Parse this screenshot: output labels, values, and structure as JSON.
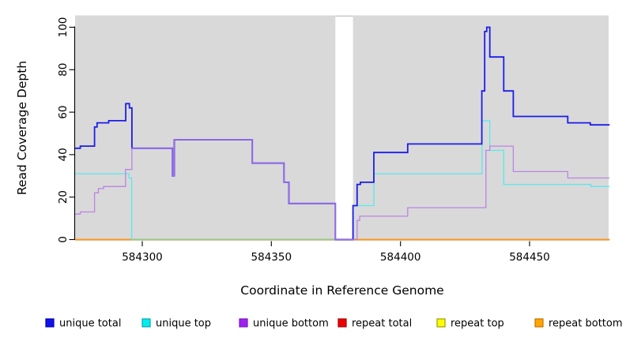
{
  "figure": {
    "panel_bg": "#D9D9D9",
    "background": "#FFFFFF",
    "gap_band": {
      "x_start": 584374.8,
      "x_end": 584381.6,
      "fill": "#FFFFFF"
    }
  },
  "axes": {
    "y": {
      "label": "Read Coverage Depth",
      "ticks": [
        0,
        20,
        40,
        60,
        80,
        100
      ],
      "range": [
        0,
        105
      ]
    },
    "x": {
      "label": "Coordinate in Reference Genome",
      "ticks": [
        584300,
        584350,
        584400,
        584450
      ],
      "range": [
        584274,
        584481
      ]
    }
  },
  "legend": [
    {
      "label": "unique total",
      "color": "#1010E8",
      "border": "#0000B8"
    },
    {
      "label": "unique top",
      "color": "#00EEEE",
      "border": "#00A8B0"
    },
    {
      "label": "unique bottom",
      "color": "#A020F0",
      "border": "#7A18BC"
    },
    {
      "label": "repeat total",
      "color": "#EE0000",
      "border": "#A80000"
    },
    {
      "label": "repeat top",
      "color": "#FFFF00",
      "border": "#9C9C00"
    },
    {
      "label": "repeat bottom",
      "color": "#FFA500",
      "border": "#C07400"
    }
  ],
  "chart_data": {
    "type": "line",
    "step": true,
    "title": "",
    "xlabel": "Coordinate in Reference Genome",
    "ylabel": "Read Coverage Depth",
    "xlim": [
      584274,
      584481
    ],
    "ylim": [
      0,
      100
    ],
    "grid": false,
    "legend_position": "bottom",
    "series": [
      {
        "name": "unique total",
        "line_color": "#1C1CEB",
        "width": 1.8,
        "points": [
          [
            584274,
            43
          ],
          [
            584276,
            44
          ],
          [
            584281.5,
            53
          ],
          [
            584282.5,
            55
          ],
          [
            584287,
            56
          ],
          [
            584293.6,
            64
          ],
          [
            584295,
            62
          ],
          [
            584296,
            43
          ],
          [
            584311.7,
            30
          ],
          [
            584312.4,
            47
          ],
          [
            584342.6,
            36
          ],
          [
            584354.9,
            27
          ],
          [
            584356.8,
            17
          ],
          [
            584374.8,
            0
          ],
          [
            584381.6,
            16
          ],
          [
            584383.2,
            26
          ],
          [
            584384.5,
            27
          ],
          [
            584389.7,
            41
          ],
          [
            584402.8,
            45
          ],
          [
            584431.5,
            70
          ],
          [
            584432.6,
            98
          ],
          [
            584433.4,
            100
          ],
          [
            584434.6,
            86
          ],
          [
            584440,
            70
          ],
          [
            584443.7,
            58
          ],
          [
            584464.8,
            55
          ],
          [
            584473.5,
            54
          ],
          [
            584481,
            54
          ]
        ]
      },
      {
        "name": "unique top",
        "line_color": "#58E9EF",
        "width": 1.3,
        "points": [
          [
            584274,
            31
          ],
          [
            584294.9,
            29
          ],
          [
            584295.9,
            0
          ],
          [
            584381.6,
            16
          ],
          [
            584389.7,
            31
          ],
          [
            584431.6,
            56
          ],
          [
            584434.6,
            42
          ],
          [
            584440,
            26
          ],
          [
            584473.7,
            25
          ],
          [
            584481,
            25
          ]
        ]
      },
      {
        "name": "unique bottom",
        "line_color": "#B678E4",
        "width": 1.3,
        "points": [
          [
            584274,
            12
          ],
          [
            584276,
            13
          ],
          [
            584281.5,
            22
          ],
          [
            584283,
            24
          ],
          [
            584285,
            25
          ],
          [
            584293.5,
            33
          ],
          [
            584296,
            43
          ],
          [
            584311.7,
            30
          ],
          [
            584312.4,
            47
          ],
          [
            584342.6,
            36
          ],
          [
            584354.9,
            27
          ],
          [
            584356.8,
            17
          ],
          [
            584374.8,
            0
          ],
          [
            584383.2,
            9
          ],
          [
            584384.2,
            11
          ],
          [
            584402.8,
            15
          ],
          [
            584433.1,
            42
          ],
          [
            584434.6,
            44
          ],
          [
            584443.7,
            32
          ],
          [
            584464.8,
            29
          ],
          [
            584481,
            29
          ]
        ]
      },
      {
        "name": "repeat total",
        "line_color": "#EE0000",
        "width": 1.2,
        "points": [
          [
            584274,
            0
          ],
          [
            584481,
            0
          ]
        ]
      },
      {
        "name": "repeat top",
        "line_color": "#FFFF00",
        "width": 1.2,
        "points": [
          [
            584274,
            0
          ],
          [
            584481,
            0
          ]
        ]
      },
      {
        "name": "repeat bottom",
        "line_color": "#FF9514",
        "width": 1.8,
        "points": [
          [
            584274,
            0
          ],
          [
            584481,
            0
          ]
        ]
      }
    ],
    "baseline_overlays": [
      {
        "x_start": 584296,
        "x_end": 584374.8,
        "value": 0,
        "visible_color": "#8FCB8F"
      }
    ]
  }
}
